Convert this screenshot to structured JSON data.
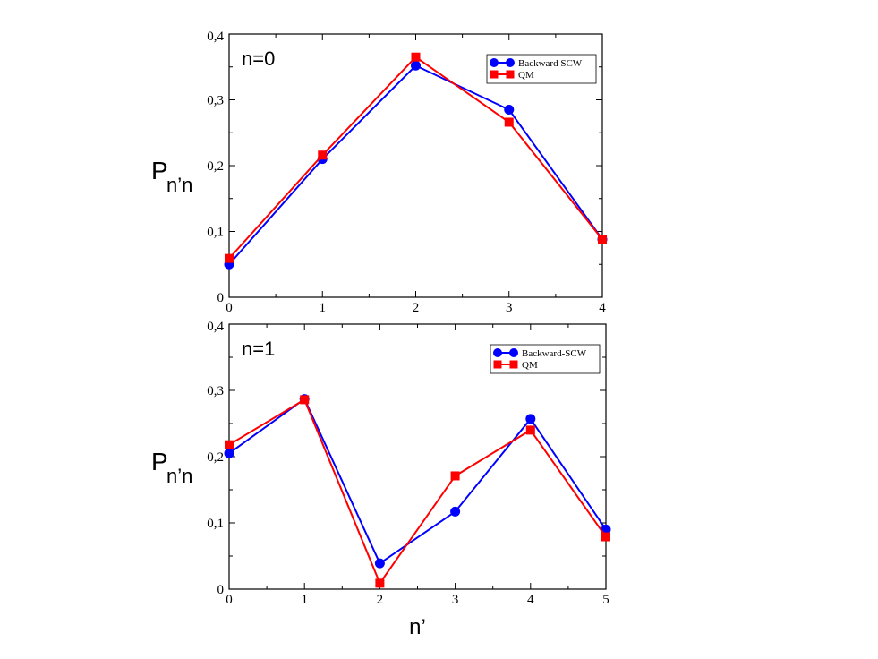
{
  "colors": {
    "blue": "#0000ff",
    "red": "#ff0000",
    "axis": "#000000"
  },
  "chart_data": [
    {
      "type": "line",
      "panel_label": "n=0",
      "ylabel_main": "P",
      "ylabel_sub": "n’n",
      "xlabel": "",
      "xlim": [
        0,
        4
      ],
      "ylim": [
        0,
        0.4
      ],
      "xticks": [
        0,
        1,
        2,
        3,
        4
      ],
      "xtick_labels": [
        "0",
        "1",
        "2",
        "3",
        "4"
      ],
      "yticks": [
        0,
        0.1,
        0.2,
        0.3,
        0.4
      ],
      "ytick_labels": [
        "0",
        "0,1",
        "0,2",
        "0,3",
        "0,4"
      ],
      "legend_position": "top-right",
      "series": [
        {
          "name": "Backward SCW",
          "color": "#0000ff",
          "marker": "circle",
          "x": [
            0,
            1,
            2,
            3,
            4
          ],
          "y": [
            0.05,
            0.21,
            0.352,
            0.285,
            0.088
          ]
        },
        {
          "name": "QM",
          "color": "#ff0000",
          "marker": "square",
          "x": [
            0,
            1,
            2,
            3,
            4
          ],
          "y": [
            0.059,
            0.216,
            0.365,
            0.266,
            0.088
          ]
        }
      ]
    },
    {
      "type": "line",
      "panel_label": "n=1",
      "ylabel_main": "P",
      "ylabel_sub": "n’n",
      "xlabel": "n’",
      "xlim": [
        0,
        5
      ],
      "ylim": [
        0,
        0.4
      ],
      "xticks": [
        0,
        1,
        2,
        3,
        4,
        5
      ],
      "xtick_labels": [
        "0",
        "1",
        "2",
        "3",
        "4",
        "5"
      ],
      "yticks": [
        0,
        0.1,
        0.2,
        0.3,
        0.4
      ],
      "ytick_labels": [
        "0",
        "0,1",
        "0,2",
        "0,3",
        "0,4"
      ],
      "legend_position": "top-right",
      "series": [
        {
          "name": "Backward-SCW",
          "color": "#0000ff",
          "marker": "circle",
          "x": [
            0,
            1,
            2,
            3,
            4,
            5
          ],
          "y": [
            0.205,
            0.287,
            0.039,
            0.117,
            0.257,
            0.09
          ]
        },
        {
          "name": "QM",
          "color": "#ff0000",
          "marker": "square",
          "x": [
            0,
            1,
            2,
            3,
            4,
            5
          ],
          "y": [
            0.218,
            0.286,
            0.009,
            0.171,
            0.24,
            0.079
          ]
        }
      ]
    }
  ]
}
